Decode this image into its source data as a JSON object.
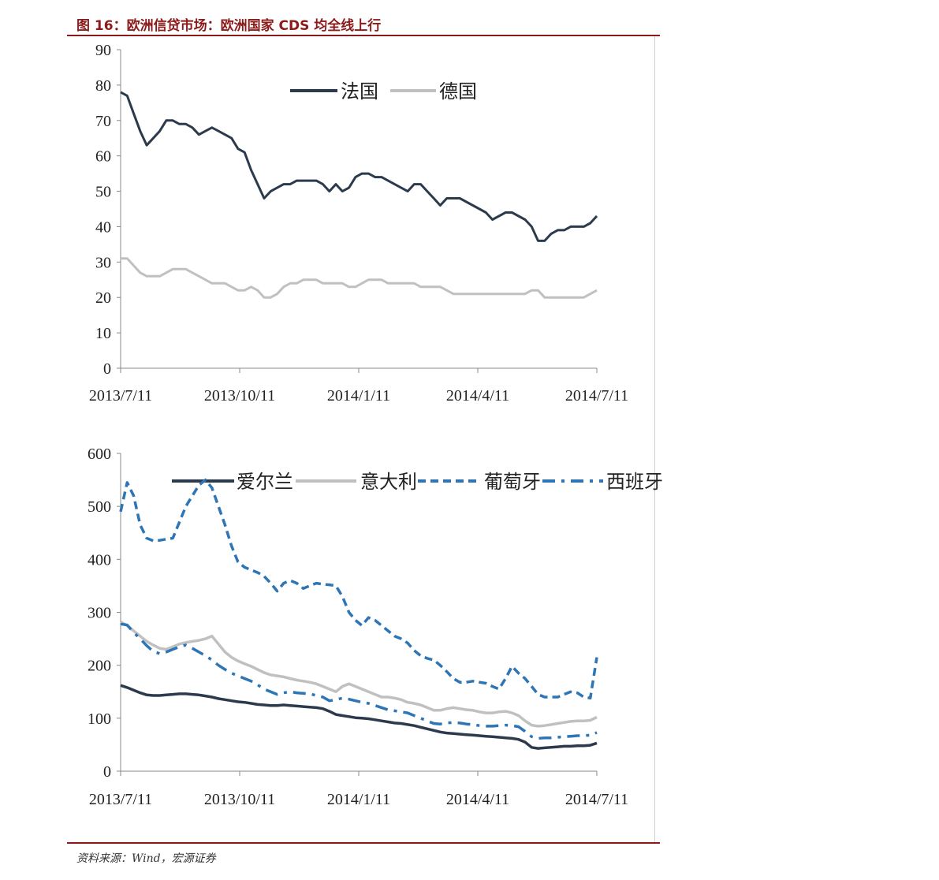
{
  "figure_title": "图 16：欧洲信贷市场：欧洲国家 CDS 均全线上行",
  "source": "资料来源：Wind，宏源证券",
  "colors": {
    "accent": "#8b1a1a",
    "france": "#2b3a4d",
    "germany": "#c0c0c0",
    "ireland": "#2b3a4d",
    "italy": "#c0c0c0",
    "portugal": "#2e75b6",
    "spain": "#2e75b6"
  },
  "chart_data": [
    {
      "type": "line",
      "title": "",
      "xlabel": "",
      "ylabel": "",
      "ylim": [
        0,
        90
      ],
      "yticks": [
        "0",
        "10",
        "20",
        "30",
        "40",
        "50",
        "60",
        "70",
        "80",
        "90"
      ],
      "xticks": [
        "2013/7/11",
        "2013/10/11",
        "2014/1/11",
        "2014/4/11",
        "2014/7/11"
      ],
      "xlim": [
        0,
        365
      ],
      "grid": false,
      "legend_position": "top-center",
      "x": [
        0,
        5,
        10,
        15,
        20,
        25,
        30,
        35,
        40,
        45,
        50,
        55,
        60,
        65,
        70,
        75,
        80,
        85,
        90,
        95,
        100,
        105,
        110,
        115,
        120,
        125,
        130,
        135,
        140,
        145,
        150,
        155,
        160,
        165,
        170,
        175,
        180,
        185,
        190,
        195,
        200,
        205,
        210,
        215,
        220,
        225,
        230,
        235,
        240,
        245,
        250,
        255,
        260,
        265,
        270,
        275,
        280,
        285,
        290,
        295,
        300,
        305,
        310,
        315,
        320,
        325,
        330,
        335,
        340,
        345,
        350,
        355,
        360,
        365
      ],
      "series": [
        {
          "name": "法国",
          "style": "solid",
          "values": [
            78,
            77,
            72,
            67,
            63,
            65,
            67,
            70,
            70,
            69,
            69,
            68,
            66,
            67,
            68,
            67,
            66,
            65,
            62,
            61,
            56,
            52,
            48,
            50,
            51,
            52,
            52,
            53,
            53,
            53,
            53,
            52,
            50,
            52,
            50,
            51,
            54,
            55,
            55,
            54,
            54,
            53,
            52,
            51,
            50,
            52,
            52,
            50,
            48,
            46,
            48,
            48,
            48,
            47,
            46,
            45,
            44,
            42,
            43,
            44,
            44,
            43,
            42,
            40,
            36,
            36,
            38,
            39,
            39,
            40,
            40,
            40,
            41,
            43
          ]
        },
        {
          "name": "德国",
          "style": "solid",
          "values": [
            31,
            31,
            29,
            27,
            26,
            26,
            26,
            27,
            28,
            28,
            28,
            27,
            26,
            25,
            24,
            24,
            24,
            23,
            22,
            22,
            23,
            22,
            20,
            20,
            21,
            23,
            24,
            24,
            25,
            25,
            25,
            24,
            24,
            24,
            24,
            23,
            23,
            24,
            25,
            25,
            25,
            24,
            24,
            24,
            24,
            24,
            23,
            23,
            23,
            23,
            22,
            21,
            21,
            21,
            21,
            21,
            21,
            21,
            21,
            21,
            21,
            21,
            21,
            22,
            22,
            20,
            20,
            20,
            20,
            20,
            20,
            20,
            21,
            22
          ]
        }
      ]
    },
    {
      "type": "line",
      "title": "",
      "xlabel": "",
      "ylabel": "",
      "ylim": [
        0,
        600
      ],
      "yticks": [
        "0",
        "100",
        "200",
        "300",
        "400",
        "500",
        "600"
      ],
      "xticks": [
        "2013/7/11",
        "2013/10/11",
        "2014/1/11",
        "2014/4/11",
        "2014/7/11"
      ],
      "xlim": [
        0,
        365
      ],
      "grid": false,
      "legend_position": "top",
      "x": [
        0,
        5,
        10,
        15,
        20,
        25,
        30,
        35,
        40,
        45,
        50,
        55,
        60,
        65,
        70,
        75,
        80,
        85,
        90,
        95,
        100,
        105,
        110,
        115,
        120,
        125,
        130,
        135,
        140,
        145,
        150,
        155,
        160,
        165,
        170,
        175,
        180,
        185,
        190,
        195,
        200,
        205,
        210,
        215,
        220,
        225,
        230,
        235,
        240,
        245,
        250,
        255,
        260,
        265,
        270,
        275,
        280,
        285,
        290,
        295,
        300,
        305,
        310,
        315,
        320,
        325,
        330,
        335,
        340,
        345,
        350,
        355,
        360,
        365
      ],
      "series": [
        {
          "name": "爱尔兰",
          "style": "solid",
          "values": [
            162,
            158,
            153,
            148,
            144,
            143,
            143,
            144,
            145,
            146,
            146,
            145,
            144,
            142,
            140,
            137,
            135,
            133,
            131,
            130,
            128,
            126,
            125,
            124,
            124,
            125,
            124,
            123,
            122,
            121,
            120,
            118,
            113,
            107,
            105,
            103,
            101,
            100,
            99,
            97,
            95,
            93,
            91,
            90,
            88,
            86,
            83,
            80,
            77,
            74,
            72,
            71,
            70,
            69,
            68,
            67,
            66,
            65,
            64,
            63,
            62,
            60,
            55,
            45,
            43,
            44,
            45,
            46,
            47,
            47,
            48,
            48,
            49,
            53
          ]
        },
        {
          "name": "意大利",
          "style": "solid",
          "values": [
            282,
            275,
            265,
            255,
            245,
            238,
            232,
            230,
            235,
            240,
            243,
            245,
            247,
            250,
            255,
            240,
            225,
            215,
            208,
            203,
            198,
            192,
            186,
            182,
            180,
            178,
            175,
            172,
            170,
            168,
            165,
            160,
            155,
            150,
            160,
            165,
            160,
            155,
            150,
            145,
            140,
            140,
            138,
            135,
            130,
            128,
            125,
            120,
            115,
            115,
            118,
            120,
            118,
            116,
            115,
            112,
            110,
            110,
            112,
            113,
            110,
            105,
            95,
            87,
            85,
            86,
            88,
            90,
            92,
            94,
            95,
            95,
            96,
            102
          ]
        },
        {
          "name": "葡萄牙",
          "style": "dashed",
          "values": [
            490,
            545,
            520,
            465,
            440,
            435,
            436,
            438,
            440,
            470,
            500,
            520,
            540,
            550,
            535,
            500,
            465,
            425,
            395,
            385,
            380,
            375,
            368,
            355,
            340,
            355,
            360,
            355,
            345,
            350,
            355,
            353,
            352,
            350,
            330,
            300,
            285,
            275,
            290,
            285,
            275,
            265,
            255,
            250,
            242,
            228,
            218,
            213,
            210,
            200,
            188,
            175,
            168,
            168,
            170,
            168,
            166,
            160,
            155,
            175,
            198,
            185,
            175,
            160,
            145,
            140,
            140,
            140,
            145,
            150,
            148,
            140,
            138,
            215
          ]
        },
        {
          "name": "西班牙",
          "style": "dash-dot",
          "values": [
            278,
            276,
            262,
            250,
            237,
            226,
            222,
            225,
            230,
            235,
            238,
            232,
            225,
            218,
            210,
            200,
            192,
            185,
            180,
            175,
            170,
            163,
            155,
            150,
            145,
            148,
            150,
            148,
            147,
            146,
            143,
            140,
            133,
            135,
            138,
            136,
            133,
            130,
            128,
            124,
            120,
            116,
            114,
            112,
            110,
            105,
            100,
            95,
            90,
            89,
            91,
            92,
            91,
            89,
            88,
            86,
            85,
            85,
            86,
            87,
            86,
            84,
            75,
            65,
            62,
            63,
            63,
            64,
            65,
            66,
            67,
            67,
            68,
            73
          ]
        }
      ]
    }
  ]
}
